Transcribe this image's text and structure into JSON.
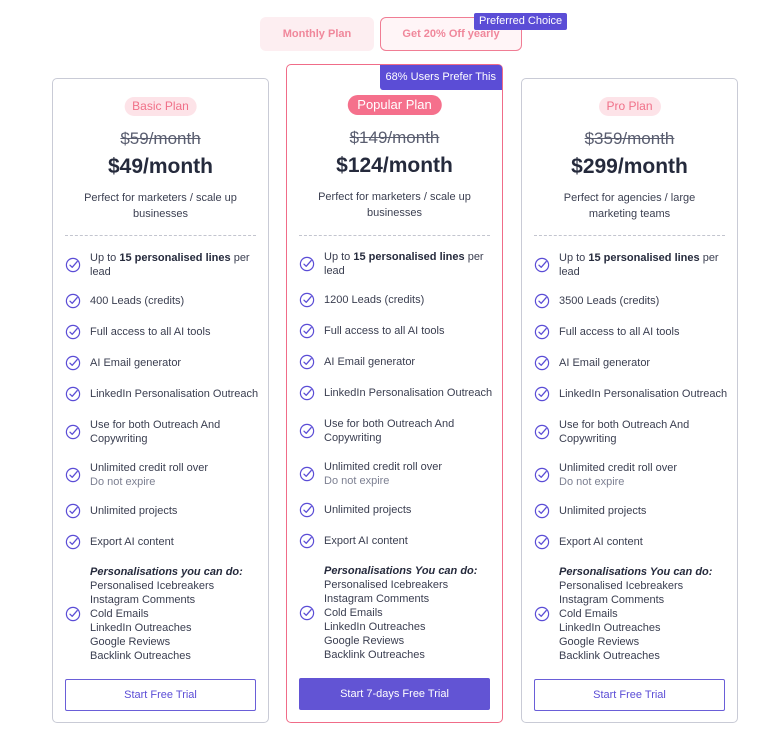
{
  "toggle": {
    "monthly_label": "Monthly Plan",
    "yearly_label": "Get 20% Off yearly",
    "preferred_badge": "Preferred Choice"
  },
  "accent": "#5b4dd6",
  "brand_pink": "#f5708c",
  "plans": [
    {
      "name": "Basic Plan",
      "old_price": "$59/month",
      "price": "$49/month",
      "description": "Perfect for marketers / scale up businesses",
      "features": {
        "f1_pre": "Up to ",
        "f1_bold": "15 personalised lines",
        "f1_post": " per lead",
        "f2": "400 Leads (credits)",
        "f3": "Full access to all AI tools",
        "f4": "AI Email generator",
        "f5": "LinkedIn Personalisation Outreach",
        "f6": "Use for both Outreach And Copywriting",
        "f7": "Unlimited credit roll over",
        "f7_sub": "Do not expire",
        "f8": "Unlimited projects",
        "f9": "Export AI content",
        "f10_head": "Personalisations you can do:",
        "f10_items": [
          "Personalised Icebreakers",
          "Instagram Comments",
          "Cold Emails",
          "LinkedIn Outreaches",
          "Google Reviews",
          "Backlink Outreaches"
        ]
      },
      "cta": "Start Free Trial"
    },
    {
      "name": "Popular Plan",
      "badge": "68% Users Prefer This",
      "old_price": "$149/month",
      "price": "$124/month",
      "description": "Perfect for marketers / scale up businesses",
      "features": {
        "f1_pre": "Up to ",
        "f1_bold": "15 personalised lines",
        "f1_post": " per lead",
        "f2": "1200 Leads (credits)",
        "f3": "Full access to all AI tools",
        "f4": "AI Email generator",
        "f5": "LinkedIn Personalisation Outreach",
        "f6": "Use for both Outreach And Copywriting",
        "f7": "Unlimited credit roll over",
        "f7_sub": "Do not expire",
        "f8": "Unlimited projects",
        "f9": "Export AI content",
        "f10_head": "Personalisations You can do:",
        "f10_items": [
          "Personalised Icebreakers",
          "Instagram Comments",
          "Cold Emails",
          "LinkedIn Outreaches",
          "Google Reviews",
          "Backlink Outreaches"
        ]
      },
      "cta": "Start 7-days Free Trial"
    },
    {
      "name": "Pro Plan",
      "old_price": "$359/month",
      "price": "$299/month",
      "description": "Perfect for agencies / large marketing teams",
      "features": {
        "f1_pre": "Up to ",
        "f1_bold": "15 personalised lines",
        "f1_post": " per lead",
        "f2": "3500 Leads (credits)",
        "f3": "Full access to all AI tools",
        "f4": "AI Email generator",
        "f5": "LinkedIn Personalisation Outreach",
        "f6": "Use for both Outreach And Copywriting",
        "f7": "Unlimited credit roll over",
        "f7_sub": "Do not expire",
        "f8": "Unlimited projects",
        "f9": "Export AI content",
        "f10_head": "Personalisations You can do:",
        "f10_items": [
          "Personalised Icebreakers",
          "Instagram Comments",
          "Cold Emails",
          "LinkedIn Outreaches",
          "Google Reviews",
          "Backlink Outreaches"
        ]
      },
      "cta": "Start Free Trial"
    }
  ]
}
